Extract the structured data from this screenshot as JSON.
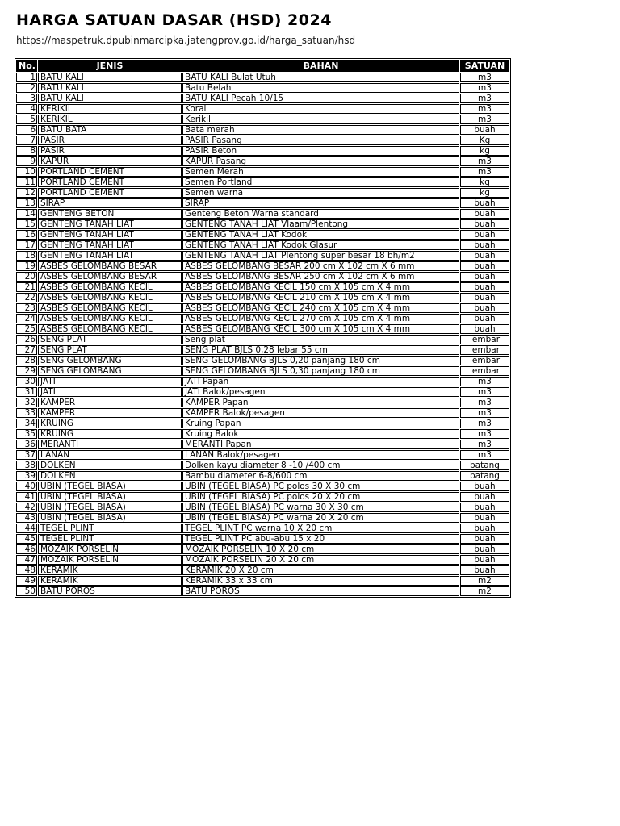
{
  "page": {
    "title": "HARGA SATUAN DASAR (HSD) 2024",
    "url": "https://maspetruk.dpubinmarcipka.jatengprov.go.id/harga_satuan/hsd",
    "background_color": "#ffffff",
    "header_bar_color": "#000000",
    "header_text_color": "#ffffff"
  },
  "table": {
    "headers": [
      "No.",
      "JENIS",
      "BAHAN",
      "SATUAN"
    ],
    "rows": [
      [
        "1",
        "BATU KALI",
        "BATU KALI Bulat Utuh",
        "m3"
      ],
      [
        "2",
        "BATU KALI",
        "Batu Belah",
        "m3"
      ],
      [
        "3",
        "BATU KALI",
        "BATU KALI Pecah 10/15",
        "m3"
      ],
      [
        "4",
        "KERIKIL",
        "Koral",
        "m3"
      ],
      [
        "5",
        "KERIKIL",
        "Kerikil",
        "m3"
      ],
      [
        "6",
        "BATU BATA",
        "Bata merah",
        "buah"
      ],
      [
        "7",
        "PASIR",
        "PASIR Pasang",
        "Kg"
      ],
      [
        "8",
        "PASIR",
        "PASIR Beton",
        "kg"
      ],
      [
        "9",
        "KAPUR",
        "KAPUR Pasang",
        "m3"
      ],
      [
        "10",
        "PORTLAND CEMENT",
        "Semen Merah",
        "m3"
      ],
      [
        "11",
        "PORTLAND CEMENT",
        "Semen Portland",
        "kg"
      ],
      [
        "12",
        "PORTLAND CEMENT",
        "Semen warna",
        "kg"
      ],
      [
        "13",
        "SIRAP",
        "SIRAP",
        "buah"
      ],
      [
        "14",
        "GENTENG BETON",
        "Genteng Beton Warna standard",
        "buah"
      ],
      [
        "15",
        "GENTENG TANAH LIAT",
        "GENTENG TANAH LIAT Vlaam/Plentong",
        "buah"
      ],
      [
        "16",
        "GENTENG TANAH LIAT",
        "GENTENG TANAH LIAT Kodok",
        "buah"
      ],
      [
        "17",
        "GENTENG TANAH LIAT",
        "GENTENG TANAH LIAT Kodok Glasur",
        "buah"
      ],
      [
        "18",
        "GENTENG TANAH LIAT",
        "GENTENG TANAH LIAT Plentong super besar 18 bh/m2",
        "buah"
      ],
      [
        "19",
        "ASBES GELOMBANG BESAR",
        "ASBES GELOMBANG BESAR 200 cm X 102 cm X 6 mm",
        "buah"
      ],
      [
        "20",
        "ASBES GELOMBANG BESAR",
        "ASBES GELOMBANG BESAR 250 cm X 102 cm X 6 mm",
        "buah"
      ],
      [
        "21",
        "ASBES GELOMBANG KECIL",
        "ASBES GELOMBANG KECIL 150 cm X 105 cm X 4 mm",
        "buah"
      ],
      [
        "22",
        "ASBES GELOMBANG KECIL",
        "ASBES GELOMBANG KECIL 210 cm X 105 cm X 4 mm",
        "buah"
      ],
      [
        "23",
        "ASBES GELOMBANG KECIL",
        "ASBES GELOMBANG KECIL 240 cm X 105 cm X 4 mm",
        "buah"
      ],
      [
        "24",
        "ASBES GELOMBANG KECIL",
        "ASBES GELOMBANG KECIL 270 cm X 105 cm X 4 mm",
        "buah"
      ],
      [
        "25",
        "ASBES GELOMBANG KECIL",
        "ASBES GELOMBANG KECIL 300 cm X 105 cm X 4 mm",
        "buah"
      ],
      [
        "26",
        "SENG PLAT",
        "Seng plat",
        "lembar"
      ],
      [
        "27",
        "SENG PLAT",
        "SENG PLAT BJLS 0,28 lebar 55 cm",
        "lembar"
      ],
      [
        "28",
        "SENG GELOMBANG",
        "SENG GELOMBANG BJLS 0,20 panjang 180 cm",
        "lembar"
      ],
      [
        "29",
        "SENG GELOMBANG",
        "SENG GELOMBANG BJLS 0,30 panjang 180 cm",
        "lembar"
      ],
      [
        "30",
        "JATI",
        "JATI Papan",
        "m3"
      ],
      [
        "31",
        "JATI",
        "JATI Balok/pesagen",
        "m3"
      ],
      [
        "32",
        "KAMPER",
        "KAMPER Papan",
        "m3"
      ],
      [
        "33",
        "KAMPER",
        "KAMPER Balok/pesagen",
        "m3"
      ],
      [
        "34",
        "KRUING",
        "Kruing Papan",
        "m3"
      ],
      [
        "35",
        "KRUING",
        "Kruing Balok",
        "m3"
      ],
      [
        "36",
        "MERANTI",
        "MERANTI Papan",
        "m3"
      ],
      [
        "37",
        "LANAN",
        "LANAN Balok/pesagen",
        "m3"
      ],
      [
        "38",
        "DOLKEN",
        "Dolken kayu diameter 8 -10 /400 cm",
        "batang"
      ],
      [
        "39",
        "DOLKEN",
        "Bambu diameter 6-8/600 cm",
        "batang"
      ],
      [
        "40",
        "UBIN (TEGEL BIASA)",
        "UBIN (TEGEL BIASA) PC polos 30 X 30 cm",
        "buah"
      ],
      [
        "41",
        "UBIN (TEGEL BIASA)",
        "UBIN (TEGEL BIASA) PC polos 20 X 20 cm",
        "buah"
      ],
      [
        "42",
        "UBIN (TEGEL BIASA)",
        "UBIN (TEGEL BIASA) PC warna 30 X 30 cm",
        "buah"
      ],
      [
        "43",
        "UBIN (TEGEL BIASA)",
        "UBIN (TEGEL BIASA) PC warna 20 X 20 cm",
        "buah"
      ],
      [
        "44",
        "TEGEL PLINT",
        "TEGEL PLINT PC warna 10 X 20 cm",
        "buah"
      ],
      [
        "45",
        "TEGEL PLINT",
        "TEGEL PLINT PC abu-abu 15 x 20",
        "buah"
      ],
      [
        "46",
        "MOZAIK PORSELIN",
        "MOZAIK PORSELIN 10 X 20 cm",
        "buah"
      ],
      [
        "47",
        "MOZAIK PORSELIN",
        "MOZAIK PORSELIN 20 X 20 cm",
        "buah"
      ],
      [
        "48",
        "KERAMIK",
        "KERAMIK 20 X 20 cm",
        "buah"
      ],
      [
        "49",
        "KERAMIK",
        "KERAMIK 33 x 33 cm",
        "m2"
      ],
      [
        "50",
        "BATU POROS",
        "BATU POROS",
        "m2"
      ]
    ]
  }
}
